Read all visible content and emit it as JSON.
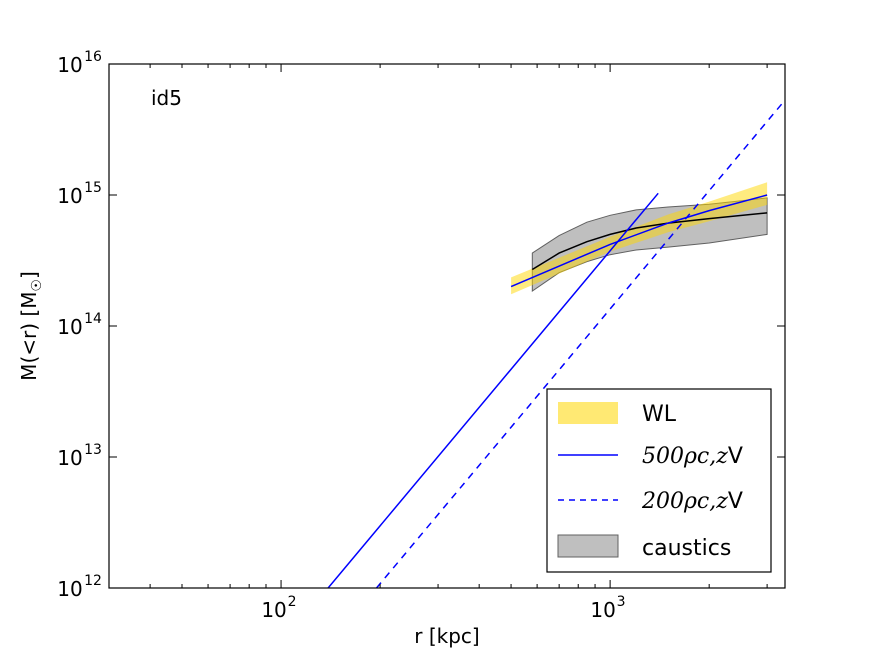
{
  "chart_data": {
    "type": "line",
    "panel_label": "id5",
    "xlabel": "r [kpc]",
    "ylabel_parts": [
      "M(<r) [M",
      "☉",
      "]"
    ],
    "x_scale": "log",
    "y_scale": "log",
    "xlim": [
      30,
      3400
    ],
    "ylim": [
      1000000000000.0,
      1e+16
    ],
    "x_ticks": [
      {
        "value": 100,
        "base": "10",
        "exp": "2"
      },
      {
        "value": 1000,
        "base": "10",
        "exp": "3"
      }
    ],
    "y_ticks": [
      {
        "value": 1000000000000.0,
        "base": "10",
        "exp": "12"
      },
      {
        "value": 10000000000000.0,
        "base": "10",
        "exp": "13"
      },
      {
        "value": 100000000000000.0,
        "base": "10",
        "exp": "14"
      },
      {
        "value": 1000000000000000.0,
        "base": "10",
        "exp": "15"
      },
      {
        "value": 1e+16,
        "base": "10",
        "exp": "16"
      }
    ],
    "legend_position": "lower-right",
    "legend": [
      {
        "key": "wl",
        "label": "WL"
      },
      {
        "key": "d500",
        "label_math": "500ρc,z",
        "label_tail": "V"
      },
      {
        "key": "d200",
        "label_math": "200ρc,z",
        "label_tail": "V"
      },
      {
        "key": "caustics",
        "label": "caustics"
      }
    ],
    "series": [
      {
        "name": "WL",
        "kind": "band",
        "color": "#ffd700",
        "x": [
          500,
          1000,
          1500,
          2000,
          3000
        ],
        "lower": [
          175000000000000.0,
          370000000000000.0,
          520000000000000.0,
          630000000000000.0,
          840000000000000.0
        ],
        "upper": [
          235000000000000.0,
          480000000000000.0,
          710000000000000.0,
          890000000000000.0,
          1250000000000000.0
        ]
      },
      {
        "name": "WL median",
        "kind": "line",
        "color": "#0000ff",
        "style": "solid",
        "x": [
          500,
          1000,
          1500,
          2000,
          3000
        ],
        "y": [
          200000000000000.0,
          420000000000000.0,
          610000000000000.0,
          760000000000000.0,
          1000000000000000.0
        ]
      },
      {
        "name": "caustics",
        "kind": "band",
        "color": "#808080",
        "x": [
          580,
          700,
          850,
          1000,
          1200,
          1500,
          2000,
          3000
        ],
        "lower": [
          185000000000000.0,
          255000000000000.0,
          310000000000000.0,
          350000000000000.0,
          380000000000000.0,
          400000000000000.0,
          430000000000000.0,
          500000000000000.0
        ],
        "upper": [
          360000000000000.0,
          490000000000000.0,
          620000000000000.0,
          700000000000000.0,
          770000000000000.0,
          810000000000000.0,
          850000000000000.0,
          950000000000000.0
        ]
      },
      {
        "name": "caustics median",
        "kind": "line",
        "color": "#000000",
        "style": "solid",
        "x": [
          580,
          700,
          850,
          1000,
          1200,
          1500,
          2000,
          3000
        ],
        "y": [
          270000000000000.0,
          360000000000000.0,
          440000000000000.0,
          500000000000000.0,
          560000000000000.0,
          610000000000000.0,
          660000000000000.0,
          730000000000000.0
        ]
      },
      {
        "name": "500ρc,zV",
        "kind": "line",
        "color": "#0000ff",
        "style": "solid",
        "x": [
          139,
          1400
        ],
        "y": [
          1000000000000.0,
          1030000000000000.0
        ]
      },
      {
        "name": "200ρc,zV",
        "kind": "line",
        "color": "#0000ff",
        "style": "dashed",
        "x": [
          195,
          3400
        ],
        "y": [
          1000000000000.0,
          5300000000000000.0
        ]
      }
    ]
  }
}
